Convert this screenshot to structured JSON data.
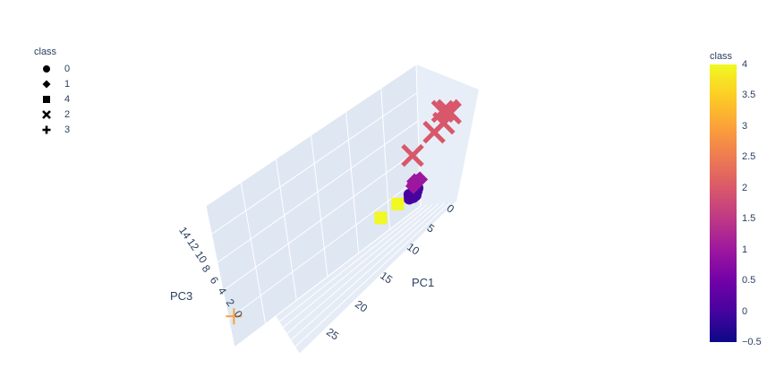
{
  "legend": {
    "title": "class",
    "items": [
      {
        "label": "0",
        "symbol": "circle-icon"
      },
      {
        "label": "1",
        "symbol": "diamond-icon"
      },
      {
        "label": "4",
        "symbol": "square-icon"
      },
      {
        "label": "2",
        "symbol": "x-icon"
      },
      {
        "label": "3",
        "symbol": "cross-icon"
      }
    ]
  },
  "colorbar": {
    "title": "class",
    "range": [
      -0.5,
      4
    ],
    "ticks": [
      "4",
      "3.5",
      "3",
      "2.5",
      "2",
      "1.5",
      "1",
      "0.5",
      "0",
      "−0.5"
    ],
    "tick_values": [
      4,
      3.5,
      3,
      2.5,
      2,
      1.5,
      1,
      0.5,
      0,
      -0.5
    ]
  },
  "colors": {
    "class_0": "#46039f",
    "class_1": "#9c179e",
    "class_2": "#d8576b",
    "class_3": "#fb9f3a",
    "class_4": "#f0f921",
    "pane": "#e5ecf6",
    "grid": "#ffffff",
    "text": "#2a3f5f"
  },
  "chart_data": {
    "type": "scatter",
    "subtype": "scatter3d",
    "xlabel": "PC1",
    "ylabel": "",
    "zlabel": "PC3",
    "x_ticks": [
      "0",
      "5",
      "10",
      "15",
      "20",
      "25"
    ],
    "z_ticks": [
      "14",
      "12",
      "10",
      "8",
      "6",
      "4",
      "2",
      "0"
    ],
    "series": [
      {
        "name": "0",
        "symbol": "circle",
        "color": "#46039f",
        "points": [
          [
            0.5,
            -1.0,
            1.2
          ],
          [
            1.0,
            -0.8,
            0.9
          ],
          [
            1.5,
            -0.6,
            1.4
          ],
          [
            0.8,
            -1.2,
            0.7
          ],
          [
            1.2,
            -0.4,
            1.0
          ],
          [
            0.3,
            -0.9,
            1.6
          ],
          [
            1.8,
            -1.1,
            0.8
          ],
          [
            0.6,
            -0.5,
            1.3
          ],
          [
            1.4,
            -1.3,
            1.1
          ],
          [
            0.9,
            -0.7,
            0.6
          ]
        ]
      },
      {
        "name": "1",
        "symbol": "diamond",
        "color": "#9c179e",
        "points": [
          [
            -0.5,
            0.5,
            2.5
          ],
          [
            -0.2,
            0.8,
            2.8
          ],
          [
            0.1,
            0.6,
            2.2
          ],
          [
            -0.8,
            0.3,
            2.6
          ],
          [
            -0.4,
            1.0,
            2.4
          ]
        ]
      },
      {
        "name": "4",
        "symbol": "square",
        "color": "#f0f921",
        "points": [
          [
            2.5,
            1.0,
            1.0
          ],
          [
            5.0,
            1.5,
            0.5
          ]
        ]
      },
      {
        "name": "2",
        "symbol": "x",
        "color": "#d8576b",
        "points": [
          [
            -4.0,
            -1.0,
            9.0
          ],
          [
            -5.0,
            -0.5,
            10.5
          ],
          [
            -3.5,
            -1.5,
            11.0
          ],
          [
            -4.5,
            -2.0,
            10.0
          ],
          [
            -3.0,
            0.0,
            8.5
          ],
          [
            0.0,
            1.0,
            7.0
          ]
        ]
      },
      {
        "name": "3",
        "symbol": "cross",
        "color": "#fb9f3a",
        "points": [
          [
            28.0,
            4.0,
            0.0
          ]
        ]
      }
    ]
  }
}
